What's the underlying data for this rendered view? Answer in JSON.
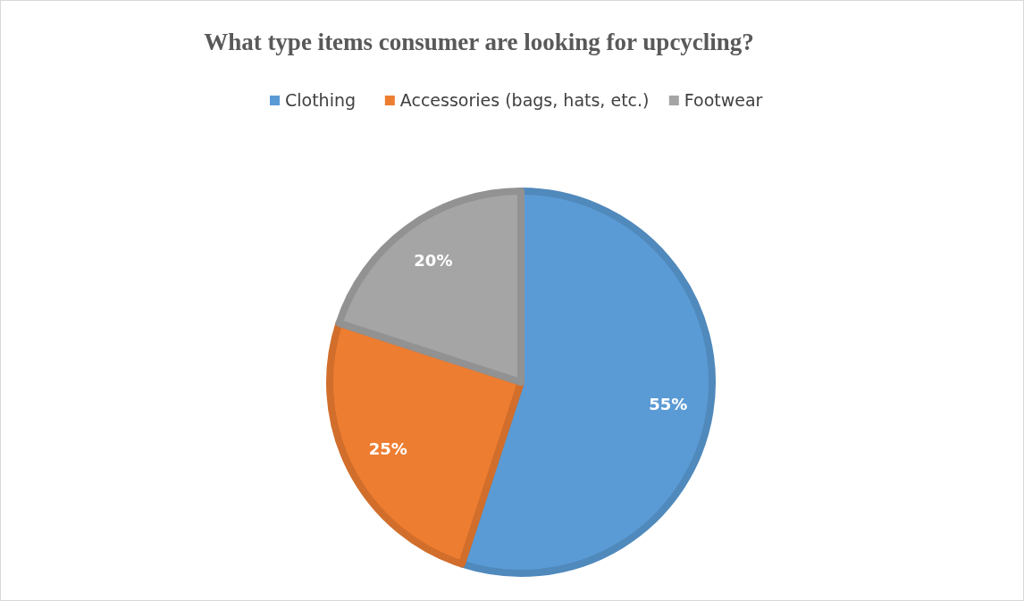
{
  "chart_data": {
    "type": "pie",
    "title": "What type items consumer  are looking for upcycling?",
    "categories": [
      "Clothing",
      "Accessories (bags, hats, etc.)",
      "Footwear"
    ],
    "values": [
      55,
      25,
      20
    ],
    "value_labels": [
      "55%",
      "25%",
      "20%"
    ],
    "colors": [
      "#5b9bd5",
      "#ed7d31",
      "#a5a5a5"
    ],
    "legend": "top"
  }
}
